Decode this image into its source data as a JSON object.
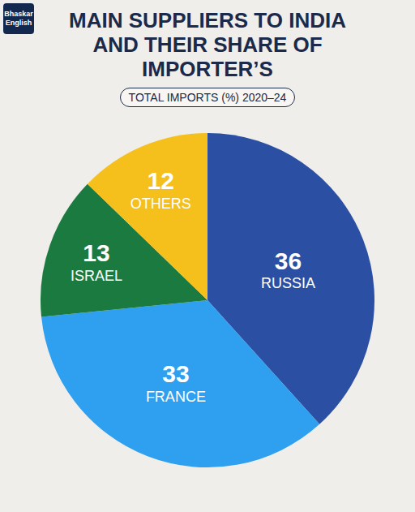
{
  "chart_data": {
    "type": "pie",
    "title": "MAIN SUPPLIERS TO INDIA AND THEIR SHARE OF IMPORTER’S",
    "subtitle": "TOTAL IMPORTS (%) 2020–24",
    "annotations": [
      "Bhaskar English"
    ],
    "categories": [
      "RUSSIA",
      "FRANCE",
      "ISRAEL",
      "OTHERS"
    ],
    "values": [
      36,
      33,
      13,
      12
    ],
    "colors": [
      "#2a4fa3",
      "#2f9ff0",
      "#1b7a3f",
      "#f5c01c"
    ],
    "data_labels": true
  }
}
